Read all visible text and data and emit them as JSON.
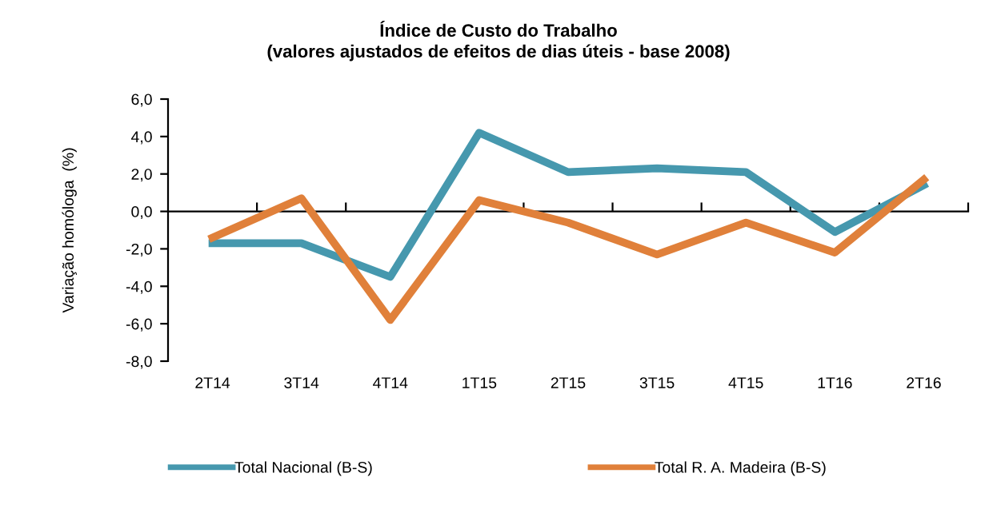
{
  "chart_data": {
    "type": "line",
    "title": "Índice de Custo do Trabalho",
    "subtitle": "(valores ajustados de efeitos de dias úteis - base 2008)",
    "ylabel": "Variação homóloga  (%)",
    "categories": [
      "2T14",
      "3T14",
      "4T14",
      "1T15",
      "2T15",
      "3T15",
      "4T15",
      "1T16",
      "2T16"
    ],
    "series": [
      {
        "name": "Total Nacional (B-S)",
        "color": "#4698ae",
        "values": [
          -1.7,
          -1.7,
          -3.5,
          4.2,
          2.1,
          2.3,
          2.1,
          -1.1,
          1.4
        ]
      },
      {
        "name": "Total R. A. Madeira (B-S)",
        "color": "#e0803a",
        "values": [
          -1.4,
          0.7,
          -5.8,
          0.6,
          -0.6,
          -2.3,
          -0.6,
          -2.2,
          1.7
        ]
      }
    ],
    "ylim": [
      -8,
      6
    ],
    "yticks": [
      {
        "value": -8,
        "label": "-8,0"
      },
      {
        "value": -6,
        "label": "-6,0"
      },
      {
        "value": -4,
        "label": "-4,0"
      },
      {
        "value": -2,
        "label": "-2,0"
      },
      {
        "value": 0,
        "label": "0,0"
      },
      {
        "value": 2,
        "label": "2,0"
      },
      {
        "value": 4,
        "label": "4,0"
      },
      {
        "value": 6,
        "label": "6,0"
      }
    ],
    "legend": "bottom",
    "marker": "none",
    "line_style": "solid"
  }
}
